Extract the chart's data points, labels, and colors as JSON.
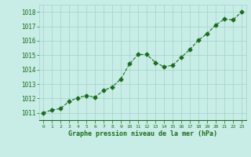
{
  "x": [
    0,
    1,
    2,
    3,
    4,
    5,
    6,
    7,
    8,
    9,
    10,
    11,
    12,
    13,
    14,
    15,
    16,
    17,
    18,
    19,
    20,
    21,
    22,
    23
  ],
  "y": [
    1011.0,
    1011.2,
    1011.3,
    1011.8,
    1012.05,
    1012.2,
    1012.1,
    1012.55,
    1012.8,
    1013.35,
    1014.4,
    1015.05,
    1015.05,
    1014.5,
    1014.2,
    1014.3,
    1014.85,
    1015.4,
    1016.05,
    1016.5,
    1017.1,
    1017.5,
    1017.45,
    1018.0
  ],
  "line_color": "#1a6e1a",
  "marker": "D",
  "marker_size": 2.5,
  "linewidth": 0.8,
  "bg_color": "#c8ece6",
  "grid_color": "#a0d4c8",
  "xlabel": "Graphe pression niveau de la mer (hPa)",
  "xlabel_color": "#1a6e1a",
  "tick_label_color": "#1a6e1a",
  "ylim": [
    1010.5,
    1018.5
  ],
  "yticks": [
    1011,
    1012,
    1013,
    1014,
    1015,
    1016,
    1017,
    1018
  ],
  "xticks": [
    0,
    1,
    2,
    3,
    4,
    5,
    6,
    7,
    8,
    9,
    10,
    11,
    12,
    13,
    14,
    15,
    16,
    17,
    18,
    19,
    20,
    21,
    22,
    23
  ],
  "xlim": [
    -0.5,
    23.5
  ]
}
